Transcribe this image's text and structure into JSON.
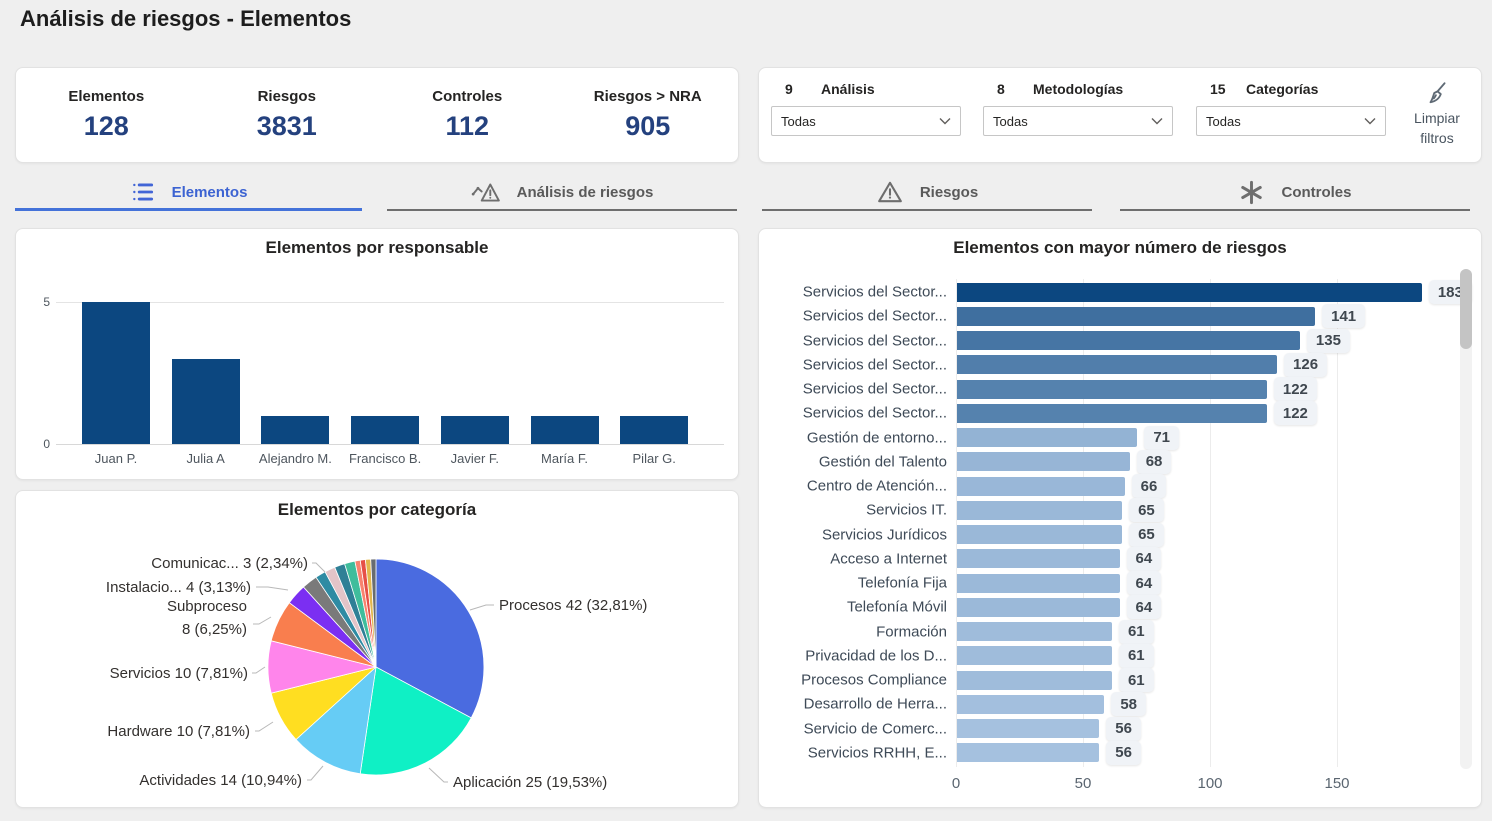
{
  "page": {
    "title": "Análisis de riesgos - Elementos"
  },
  "kpis": [
    {
      "label": "Elementos",
      "value": "128"
    },
    {
      "label": "Riesgos",
      "value": "3831"
    },
    {
      "label": "Controles",
      "value": "112"
    },
    {
      "label": "Riesgos > NRA",
      "value": "905"
    }
  ],
  "filters": {
    "groups": [
      {
        "count": "9",
        "label": "Análisis",
        "value": "Todas"
      },
      {
        "count": "8",
        "label": "Metodologías",
        "value": "Todas"
      },
      {
        "count": "15",
        "label": "Categorías",
        "value": "Todas"
      }
    ],
    "clear_label_line1": "Limpiar",
    "clear_label_line2": "filtros"
  },
  "tabs": [
    {
      "label": "Elementos",
      "icon": "list-icon",
      "active": true
    },
    {
      "label": "Análisis de riesgos",
      "icon": "risk-analysis-icon",
      "active": false
    },
    {
      "label": "Riesgos",
      "icon": "warning-icon",
      "active": false
    },
    {
      "label": "Controles",
      "icon": "controls-icon",
      "active": false
    }
  ],
  "colors": {
    "accent_blue": "#4472D9",
    "kpi_value": "#24417E",
    "dark_bar": "#0C4780",
    "hbar_max_color": "#0C4780",
    "hbar_min_color": "#A5C1DF",
    "chip_bg": "#F0F3F7",
    "chip_text": "#3F474F"
  },
  "chart_data": [
    {
      "type": "bar",
      "title": "Elementos por responsable",
      "categories": [
        "Juan P.",
        "Julia A",
        "Alejandro M.",
        "Francisco B.",
        "Javier F.",
        "María F.",
        "Pilar G."
      ],
      "values": [
        5,
        3,
        1,
        1,
        1,
        1,
        1
      ],
      "ylim": [
        0,
        5
      ],
      "yticks": [
        0,
        5
      ],
      "bar_color": "#0C4780"
    },
    {
      "type": "pie",
      "title": "Elementos por categoría",
      "total": 128,
      "slices": [
        {
          "label": "Procesos",
          "value": 42,
          "display": "Procesos 42 (32,81%)",
          "color": "#4A6BE0"
        },
        {
          "label": "Aplicación",
          "value": 25,
          "display": "Aplicación 25 (19,53%)",
          "color": "#0FF0C5"
        },
        {
          "label": "Actividades",
          "value": 14,
          "display": "Actividades 14 (10,94%)",
          "color": "#66CCF5"
        },
        {
          "label": "Hardware",
          "value": 10,
          "display": "Hardware 10 (7,81%)",
          "color": "#FFDE21"
        },
        {
          "label": "Servicios",
          "value": 10,
          "display": "Servicios 10 (7,81%)",
          "color": "#FF85EB"
        },
        {
          "label": "Subproceso",
          "value": 8,
          "display": "Subproceso 8 (6,25%)",
          "display_line1": "Subproceso",
          "display_line2": "8 (6,25%)",
          "color": "#F97E4E"
        },
        {
          "label": "Instalacio...",
          "value": 4,
          "display": "Instalacio... 4 (3,13%)",
          "color": "#7B2FF2"
        },
        {
          "label": "Comunicac...",
          "value": 3,
          "display": "Comunicac... 3 (2,34%)",
          "color": "#7A7A7A"
        }
      ],
      "small_unlabeled_slices": [
        {
          "value": 2,
          "color": "#2E8BA3"
        },
        {
          "value": 2,
          "color": "#E3C4C8"
        },
        {
          "value": 2,
          "color": "#2F8096"
        },
        {
          "value": 2,
          "color": "#3FBD9C"
        },
        {
          "value": 1,
          "color": "#F8836F"
        },
        {
          "value": 1,
          "color": "#E65047"
        },
        {
          "value": 1,
          "color": "#E3B74E"
        },
        {
          "value": 1,
          "color": "#686C70"
        }
      ]
    },
    {
      "type": "bar-horizontal",
      "title": "Elementos con mayor número de riesgos",
      "categories": [
        "Servicios del Sector...",
        "Servicios del Sector...",
        "Servicios del Sector...",
        "Servicios del Sector...",
        "Servicios del Sector...",
        "Servicios del Sector...",
        "Gestión de entorno...",
        "Gestión del Talento",
        "Centro de Atención...",
        "Servicios IT.",
        "Servicios Jurídicos",
        "Acceso a Internet",
        "Telefonía Fija",
        "Telefonía Móvil",
        "Formación",
        "Privacidad de los D...",
        "Procesos Compliance",
        "Desarrollo de Herra...",
        "Servicio de Comerc...",
        "Servicios RRHH, E..."
      ],
      "values": [
        183,
        141,
        135,
        126,
        122,
        122,
        71,
        68,
        66,
        65,
        65,
        64,
        64,
        64,
        61,
        61,
        61,
        58,
        56,
        56
      ],
      "xticks": [
        0,
        50,
        100,
        150
      ],
      "xlim": [
        0,
        199
      ]
    }
  ]
}
